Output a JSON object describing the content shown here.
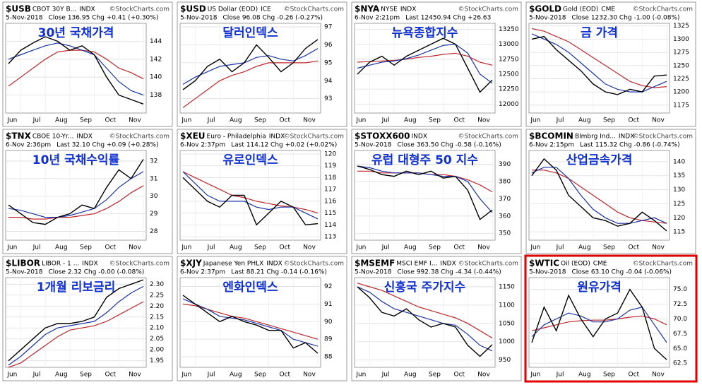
{
  "chart_data": [
    {
      "type": "line",
      "symbol": "$USB",
      "description": "CBOT 30Y B...",
      "exchange": "INDX",
      "source": "©StockCharts.com",
      "date": "5-Nov-2018",
      "quote": "Close 136.95  Chg +0.41 (+0.30%)",
      "annotation": "30년 국채가격",
      "categories": [
        null,
        "Jun",
        null,
        "Jul",
        null,
        "Aug",
        null,
        "Sep",
        null,
        "Oct",
        null,
        "Nov"
      ],
      "series": [
        {
          "color": "#000000",
          "values": [
            141.5,
            143,
            143.8,
            144.5,
            144,
            143,
            143.5,
            142.5,
            140,
            138,
            137.5,
            137
          ]
        },
        {
          "color": "#1a33a8",
          "values": [
            142,
            142.5,
            143,
            143.5,
            143.8,
            143.5,
            143,
            142.5,
            141,
            139.5,
            138.5,
            138
          ]
        },
        {
          "color": "#c0282d",
          "values": [
            139,
            140,
            141,
            142,
            142.8,
            143,
            143,
            142.8,
            142,
            141,
            140.5,
            139.8
          ]
        }
      ],
      "ylim": [
        136,
        146
      ],
      "yticks": [
        138,
        140,
        142,
        144
      ],
      "grid": true
    },
    {
      "type": "line",
      "symbol": "$USD",
      "description": "US Dollar (EOD)",
      "exchange": "ICE",
      "source": "©StockCharts.com",
      "date": "5-Nov-2018",
      "quote": "Close 96.08  Chg -0.26 (-0.27%)",
      "annotation": "달러인덱스",
      "categories": [
        null,
        "Jun",
        null,
        "Jul",
        null,
        "Aug",
        null,
        "Sep",
        null,
        "Oct",
        null,
        "Nov"
      ],
      "series": [
        {
          "color": "#000000",
          "values": [
            93.5,
            94,
            94.8,
            95.2,
            94.5,
            95,
            96,
            95.3,
            94.5,
            95,
            95.8,
            96.3
          ]
        },
        {
          "color": "#1a33a8",
          "values": [
            93.8,
            94.2,
            94.5,
            94.8,
            94.9,
            95,
            95.3,
            95.4,
            95.2,
            95.1,
            95.4,
            95.8
          ]
        },
        {
          "color": "#c0282d",
          "values": [
            92.5,
            93,
            93.5,
            94,
            94.3,
            94.5,
            94.8,
            95,
            95,
            95,
            95,
            95.1
          ]
        }
      ],
      "ylim": [
        92.2,
        97.2
      ],
      "yticks": [
        93,
        94,
        95,
        96,
        97
      ],
      "grid": true
    },
    {
      "type": "line",
      "symbol": "$NYA",
      "description": "NYSE",
      "exchange": "INDX",
      "source": "©StockCharts.com",
      "date": "6-Nov 2:21pm",
      "quote": "Last 12450.94  Chg +26.63",
      "annotation": "뉴욕종합지수",
      "categories": [
        null,
        "Jun",
        null,
        "Jul",
        null,
        "Aug",
        null,
        "Sep",
        null,
        "Oct",
        null,
        "Nov"
      ],
      "series": [
        {
          "color": "#000000",
          "values": [
            12500,
            12700,
            12800,
            12650,
            12800,
            12900,
            13000,
            13100,
            13000,
            12600,
            12200,
            12400
          ]
        },
        {
          "color": "#1a33a8",
          "values": [
            12600,
            12650,
            12700,
            12720,
            12760,
            12820,
            12900,
            12980,
            13000,
            12850,
            12500,
            12350
          ]
        },
        {
          "color": "#c0282d",
          "values": [
            12700,
            12710,
            12720,
            12730,
            12750,
            12780,
            12800,
            12830,
            12850,
            12800,
            12700,
            12650
          ]
        }
      ],
      "ylim": [
        11850,
        13350
      ],
      "yticks": [
        12000,
        12250,
        12500,
        12750,
        13000,
        13250
      ],
      "grid": true
    },
    {
      "type": "line",
      "symbol": "$GOLD",
      "description": "Gold (EOD)",
      "exchange": "CME",
      "source": "©StockCharts.com",
      "date": "5-Nov-2018",
      "quote": "Close 1232.30  Chg -1.00 (-0.08%)",
      "annotation": "금 가격",
      "categories": [
        null,
        "Jun",
        null,
        "Jul",
        null,
        "Aug",
        null,
        "Sep",
        null,
        "Oct",
        null,
        "Nov"
      ],
      "series": [
        {
          "color": "#000000",
          "values": [
            1300,
            1305,
            1280,
            1260,
            1240,
            1215,
            1200,
            1195,
            1205,
            1200,
            1230,
            1232
          ]
        },
        {
          "color": "#1a33a8",
          "values": [
            1310,
            1300,
            1290,
            1275,
            1255,
            1235,
            1215,
            1205,
            1200,
            1200,
            1210,
            1220
          ]
        },
        {
          "color": "#c0282d",
          "values": [
            1320,
            1315,
            1305,
            1295,
            1280,
            1265,
            1250,
            1235,
            1220,
            1212,
            1208,
            1210
          ]
        }
      ],
      "ylim": [
        1160,
        1330
      ],
      "yticks": [
        1175,
        1200,
        1225,
        1250,
        1275,
        1300,
        1325
      ],
      "grid": true
    },
    {
      "type": "line",
      "symbol": "$TNX",
      "description": "CBOE 10-Yr...",
      "exchange": "INDX",
      "source": "©StockCharts.com",
      "date": "6-Nov 2:36pm",
      "quote": "Last 32.10  Chg +0.09 (+0.28%)",
      "annotation": "10년 국채수익률",
      "categories": [
        null,
        "Jun",
        null,
        "Jul",
        null,
        "Aug",
        null,
        "Sep",
        null,
        "Oct",
        null,
        "Nov"
      ],
      "series": [
        {
          "color": "#000000",
          "values": [
            29.5,
            29,
            28.5,
            28.4,
            28.8,
            29,
            29.5,
            29.3,
            30.5,
            31.5,
            31,
            32.1
          ]
        },
        {
          "color": "#1a33a8",
          "values": [
            29.3,
            29.2,
            29,
            28.8,
            28.8,
            28.9,
            29.1,
            29.3,
            29.8,
            30.5,
            31,
            31.4
          ]
        },
        {
          "color": "#c0282d",
          "values": [
            28.8,
            28.8,
            28.7,
            28.7,
            28.8,
            28.8,
            28.9,
            29,
            29.3,
            29.7,
            30.2,
            30.6
          ]
        }
      ],
      "ylim": [
        27.5,
        32.6
      ],
      "yticks": [
        28,
        29,
        30,
        31,
        32
      ],
      "grid": true
    },
    {
      "type": "line",
      "symbol": "$XEU",
      "description": "Euro - Philadelphia",
      "exchange": "INDX",
      "source": "©StockCharts.com",
      "date": "6-Nov 2:37pm",
      "quote": "Last 114.12  Chg +0.02 (+0.02%)",
      "annotation": "유로인덱스",
      "categories": [
        null,
        "Jun",
        null,
        "Jul",
        null,
        "Aug",
        null,
        "Sep",
        null,
        "Oct",
        null,
        "Nov"
      ],
      "series": [
        {
          "color": "#000000",
          "values": [
            118,
            117,
            116,
            115.5,
            116.5,
            116.5,
            114,
            115,
            116,
            115.5,
            114,
            114.1
          ]
        },
        {
          "color": "#1a33a8",
          "values": [
            118.5,
            117.5,
            116.5,
            116,
            116,
            116,
            115.5,
            115.3,
            115.5,
            115.5,
            115,
            114.5
          ]
        },
        {
          "color": "#c0282d",
          "values": [
            118.5,
            118,
            117.5,
            117,
            116.5,
            116.3,
            116,
            115.8,
            115.6,
            115.5,
            115.3,
            115
          ]
        }
      ],
      "ylim": [
        112.7,
        120.3
      ],
      "yticks": [
        113,
        114,
        115,
        116,
        117,
        118,
        119,
        120
      ],
      "grid": true
    },
    {
      "type": "line",
      "symbol": "$STOXX600",
      "description": "",
      "exchange": "INDX",
      "source": "©StockCharts.com",
      "date": "5-Nov-2018",
      "quote": "Close 363.50  Chg -0.58 (-0.16%)",
      "annotation": "유럽 대형주 50 지수",
      "categories": [
        null,
        "Jun",
        null,
        "Jul",
        null,
        "Aug",
        null,
        "Sep",
        null,
        "Oct",
        null,
        "Nov"
      ],
      "series": [
        {
          "color": "#000000",
          "values": [
            389,
            387,
            384,
            383,
            386,
            384,
            386,
            382,
            383,
            375,
            358,
            363.5
          ]
        },
        {
          "color": "#1a33a8",
          "values": [
            389,
            388,
            386,
            385,
            385,
            385,
            384,
            383,
            383,
            380,
            370,
            362
          ]
        },
        {
          "color": "#c0282d",
          "values": [
            386,
            386,
            385,
            385,
            385,
            385,
            384,
            384,
            383,
            381,
            378,
            374
          ]
        }
      ],
      "ylim": [
        346,
        398
      ],
      "yticks": [
        350,
        360,
        370,
        380,
        390
      ],
      "grid": true
    },
    {
      "type": "line",
      "symbol": "$BCOMIN",
      "description": "Blmbrg Ind...",
      "exchange": "INDX",
      "source": "©StockCharts.com",
      "date": "6-Nov 2:15pm",
      "quote": "Last 115.32  Chg -0.86 (-0.74%)",
      "annotation": "산업금속가격",
      "categories": [
        null,
        "Jun",
        null,
        "Jul",
        null,
        "Aug",
        null,
        "Sep",
        null,
        "Oct",
        null,
        "Nov"
      ],
      "series": [
        {
          "color": "#000000",
          "values": [
            135,
            141,
            137,
            128,
            124,
            120,
            119,
            117,
            118,
            122,
            119,
            115.3
          ]
        },
        {
          "color": "#1a33a8",
          "values": [
            136,
            138,
            138,
            134,
            128,
            123,
            120,
            118,
            118,
            119,
            120,
            118
          ]
        },
        {
          "color": "#c0282d",
          "values": [
            137,
            137,
            136,
            134,
            131,
            128,
            125,
            122,
            120,
            119,
            118.5,
            118
          ]
        }
      ],
      "ylim": [
        112,
        144
      ],
      "yticks": [
        115,
        120,
        125,
        130,
        135,
        140
      ],
      "grid": true
    },
    {
      "type": "line",
      "symbol": "$LIBOR",
      "description": "LIBOR - 1 ...",
      "exchange": "INDX",
      "source": "©StockCharts.com",
      "date": "5-Nov-2018",
      "quote": "Close 2.32  Chg -0.00 (-0.08%)",
      "annotation": "1개월 리보금리",
      "categories": [
        null,
        "Jun",
        null,
        "Jul",
        null,
        "Aug",
        null,
        "Sep",
        null,
        "Oct",
        null,
        "Nov"
      ],
      "series": [
        {
          "color": "#000000",
          "values": [
            1.95,
            2.0,
            2.05,
            2.1,
            2.12,
            2.12,
            2.13,
            2.15,
            2.24,
            2.28,
            2.3,
            2.32
          ]
        },
        {
          "color": "#1a33a8",
          "values": [
            1.93,
            1.97,
            2.02,
            2.07,
            2.1,
            2.11,
            2.12,
            2.13,
            2.17,
            2.22,
            2.26,
            2.29
          ]
        },
        {
          "color": "#c0282d",
          "values": [
            1.92,
            1.94,
            1.98,
            2.02,
            2.06,
            2.09,
            2.1,
            2.11,
            2.13,
            2.16,
            2.19,
            2.22
          ]
        }
      ],
      "ylim": [
        1.92,
        2.33
      ],
      "yticks": [
        1.95,
        {
          "value": 2.0,
          "label": "2.00"
        },
        2.05,
        {
          "value": 2.1,
          "label": "2.10"
        },
        2.15,
        {
          "value": 2.2,
          "label": "2.20"
        },
        2.25,
        {
          "value": 2.3,
          "label": "2.30"
        }
      ],
      "grid": true
    },
    {
      "type": "line",
      "symbol": "$XJY",
      "description": "Japanese Yen PHLX",
      "exchange": "INDX",
      "source": "©StockCharts.com",
      "date": "6-Nov 2:37pm",
      "quote": "Last 88.21  Chg -0.14 (-0.16%)",
      "annotation": "엔화인덱스",
      "categories": [
        null,
        "Jun",
        null,
        "Jul",
        null,
        "Aug",
        null,
        "Sep",
        null,
        "Oct",
        null,
        "Nov"
      ],
      "series": [
        {
          "color": "#000000",
          "values": [
            91.5,
            91,
            90.5,
            90,
            90.3,
            90,
            89.8,
            89.5,
            89.5,
            88.5,
            88.8,
            88.2
          ]
        },
        {
          "color": "#1a33a8",
          "values": [
            91.3,
            91,
            90.7,
            90.3,
            90.2,
            90.1,
            89.9,
            89.7,
            89.5,
            89,
            88.8,
            88.6
          ]
        },
        {
          "color": "#c0282d",
          "values": [
            91,
            90.9,
            90.7,
            90.5,
            90.3,
            90.2,
            90,
            89.8,
            89.6,
            89.4,
            89.2,
            89
          ]
        }
      ],
      "ylim": [
        87.4,
        92.5
      ],
      "yticks": [
        88,
        89,
        90,
        91,
        92
      ],
      "grid": true
    },
    {
      "type": "line",
      "symbol": "$MSEMF",
      "description": "MSCI EMF I...",
      "exchange": "INDX",
      "source": "©StockCharts.com",
      "date": "5-Nov-2018",
      "quote": "Close 992.38  Chg -4.34 (-0.44%)",
      "annotation": "신흥국 주가지수",
      "categories": [
        null,
        "Jun",
        null,
        "Jul",
        null,
        "Aug",
        null,
        "Sep",
        null,
        "Oct",
        null,
        "Nov"
      ],
      "series": [
        {
          "color": "#000000",
          "values": [
            1150,
            1120,
            1080,
            1070,
            1090,
            1060,
            1040,
            1050,
            1040,
            990,
            960,
            992
          ]
        },
        {
          "color": "#1a33a8",
          "values": [
            1150,
            1135,
            1110,
            1090,
            1080,
            1070,
            1060,
            1050,
            1045,
            1020,
            990,
            975
          ]
        },
        {
          "color": "#c0282d",
          "values": [
            1160,
            1150,
            1140,
            1125,
            1110,
            1095,
            1085,
            1075,
            1065,
            1050,
            1030,
            1010
          ]
        }
      ],
      "ylim": [
        930,
        1175
      ],
      "yticks": [
        950,
        1000,
        1050,
        1100,
        1150
      ],
      "grid": true
    },
    {
      "type": "line",
      "symbol": "$WTIC",
      "description": "Oil (EOD)",
      "exchange": "CME",
      "source": "©StockCharts.com",
      "date": "5-Nov-2018",
      "quote": "Close 63.10  Chg -0.04 (-0.06%)",
      "annotation": "원유가격",
      "highlight": true,
      "categories": [
        null,
        "Jun",
        null,
        "Jul",
        null,
        "Aug",
        null,
        "Sep",
        null,
        "Oct",
        null,
        "Nov"
      ],
      "series": [
        {
          "color": "#000000",
          "values": [
            66,
            72,
            68,
            74,
            70,
            67,
            70,
            71,
            75,
            72,
            65,
            63.1
          ]
        },
        {
          "color": "#1a33a8",
          "values": [
            67,
            69,
            70,
            71,
            70.5,
            69.5,
            69.5,
            70,
            71.5,
            72,
            69,
            66
          ]
        },
        {
          "color": "#c0282d",
          "values": [
            68,
            68.5,
            69,
            69.5,
            69.7,
            69.8,
            69.8,
            70,
            70.3,
            70.5,
            70,
            69
          ]
        }
      ],
      "ylim": [
        61.8,
        77
      ],
      "yticks": [
        {
          "value": 62.5,
          "label": "62.5"
        },
        {
          "value": 65,
          "label": "65.0"
        },
        {
          "value": 67.5,
          "label": "67.5"
        },
        {
          "value": 70,
          "label": "70.0"
        },
        {
          "value": 72.5,
          "label": "72.5"
        },
        {
          "value": 75,
          "label": "75.0"
        }
      ],
      "grid": true
    }
  ]
}
